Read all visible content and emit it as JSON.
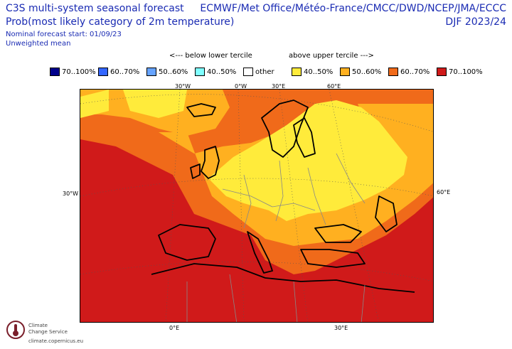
{
  "header": {
    "title": "C3S multi-system seasonal forecast",
    "subtitle": "Prob(most likely category of 2m temperature)",
    "start": "Nominal forecast start: 01/09/23",
    "mean": "Unweighted mean",
    "centres": "ECMWF/Met Office/Météo-France/CMCC/DWD/NCEP/JMA/ECCC",
    "season": "DJF 2023/24"
  },
  "terciles": {
    "below": "<--- below lower tercile",
    "above": "above upper tercile --->"
  },
  "legend": [
    {
      "label": "70..100%",
      "color": "#00008b"
    },
    {
      "label": "60..70%",
      "color": "#3366ff"
    },
    {
      "label": "50..60%",
      "color": "#66a3ff"
    },
    {
      "label": "40..50%",
      "color": "#7fffff"
    },
    {
      "label": "other",
      "color": "#ffffff"
    },
    {
      "label": "40..50%",
      "color": "#ffeb3b"
    },
    {
      "label": "50..60%",
      "color": "#ffb020"
    },
    {
      "label": "60..70%",
      "color": "#f06a1a"
    },
    {
      "label": "70..100%",
      "color": "#d01a1a"
    }
  ],
  "grid_labels": {
    "top_30w": "30°W",
    "top_0w": "0°W",
    "top_30e": "30°E",
    "top_60e": "60°E",
    "left_30w": "30°W",
    "right_60e": "60°E",
    "bottom_0e": "0°E",
    "bottom_30e": "30°E"
  },
  "logo": {
    "line1": "Climate",
    "line2": "Change Service",
    "line3": "climate.copernicus.eu"
  }
}
